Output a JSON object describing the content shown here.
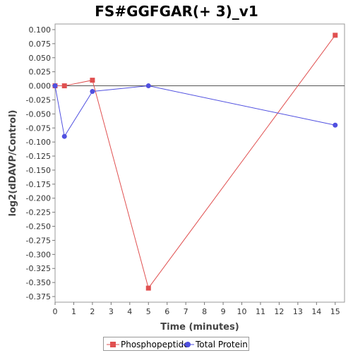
{
  "chart_data": {
    "type": "line",
    "title": "FS#GGFGAR(+ 3)_v1",
    "xlabel": "Time (minutes)",
    "ylabel": "log2(dDAVP/Control)",
    "xlim": [
      0,
      15.5
    ],
    "ylim": [
      -0.385,
      0.11
    ],
    "x_ticks": [
      0,
      1,
      2,
      3,
      4,
      5,
      6,
      7,
      8,
      9,
      10,
      11,
      12,
      13,
      14,
      15
    ],
    "y_ticks": [
      0.1,
      0.075,
      0.05,
      0.025,
      0.0,
      -0.025,
      -0.05,
      -0.075,
      -0.1,
      -0.125,
      -0.15,
      -0.175,
      -0.2,
      -0.225,
      -0.25,
      -0.275,
      -0.3,
      -0.325,
      -0.35,
      -0.375
    ],
    "y_tick_labels": [
      "0.100",
      "0.075",
      "0.050",
      "0.025",
      "0.000",
      "-0.025",
      "-0.050",
      "-0.075",
      "-0.100",
      "-0.125",
      "-0.150",
      "-0.175",
      "-0.200",
      "-0.225",
      "-0.250",
      "-0.275",
      "-0.300",
      "-0.325",
      "-0.350",
      "-0.375"
    ],
    "grid": false,
    "zero_line": true,
    "legend_position": "bottom",
    "series": [
      {
        "name": "Phosphopeptide",
        "color": "#e05050",
        "marker": "square",
        "x": [
          0,
          0.5,
          2,
          5,
          15
        ],
        "y": [
          0.0,
          0.0,
          0.01,
          -0.36,
          0.09
        ]
      },
      {
        "name": "Total Protein",
        "color": "#5050e0",
        "marker": "circle",
        "x": [
          0,
          0.5,
          2,
          5,
          15
        ],
        "y": [
          0.0,
          -0.09,
          -0.01,
          0.0,
          -0.07
        ]
      }
    ]
  }
}
